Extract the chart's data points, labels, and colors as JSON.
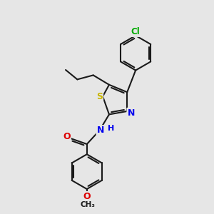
{
  "bg_color": "#e6e6e6",
  "bond_color": "#1a1a1a",
  "bond_width": 1.5,
  "atom_colors": {
    "S": "#c8b400",
    "N": "#0000ee",
    "O": "#dd0000",
    "Cl": "#00aa00",
    "C": "#1a1a1a",
    "H": "#0000ee"
  },
  "font_size": 8.5
}
